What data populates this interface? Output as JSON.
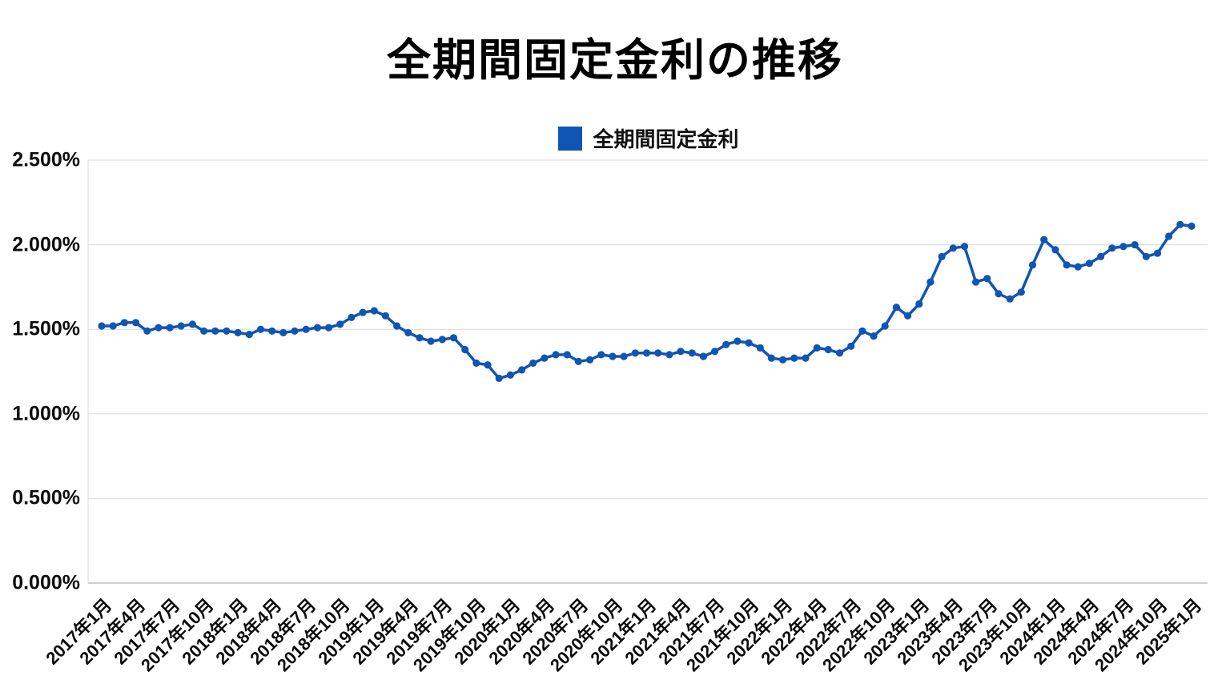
{
  "title": "全期間固定金利の推移",
  "legend": {
    "label": "全期間固定金利",
    "color": "#1155b4"
  },
  "chart_data": {
    "type": "line",
    "title": "全期間固定金利の推移",
    "xlabel": "",
    "ylabel": "",
    "ylim": [
      0,
      2.5
    ],
    "grid": "horizontal",
    "legend_position": "top-center",
    "y_tick_labels": [
      "0.000%",
      "0.500%",
      "1.000%",
      "1.500%",
      "2.000%",
      "2.500%"
    ],
    "y_tick_values": [
      0,
      0.5,
      1.0,
      1.5,
      2.0,
      2.5
    ],
    "x_tick_labels": [
      "2017年1月",
      "2017年4月",
      "2017年7月",
      "2017年10月",
      "2018年1月",
      "2018年4月",
      "2018年7月",
      "2018年10月",
      "2019年1月",
      "2019年4月",
      "2019年7月",
      "2019年10月",
      "2020年1月",
      "2020年4月",
      "2020年7月",
      "2020年10月",
      "2021年1月",
      "2021年4月",
      "2021年7月",
      "2021年10月",
      "2022年1月",
      "2022年4月",
      "2022年7月",
      "2022年10月",
      "2023年1月",
      "2023年4月",
      "2023年7月",
      "2023年10月",
      "2024年1月",
      "2024年4月",
      "2024年7月",
      "2024年10月",
      "2025年1月"
    ],
    "x_tick_interval": 3,
    "x_range_note": "monthly points from 2017年1月 to 2025年1月",
    "series": [
      {
        "name": "全期間固定金利",
        "color": "#1155b4",
        "unit": "%",
        "values": [
          1.52,
          1.52,
          1.54,
          1.54,
          1.49,
          1.51,
          1.51,
          1.52,
          1.53,
          1.49,
          1.49,
          1.49,
          1.48,
          1.47,
          1.5,
          1.49,
          1.48,
          1.49,
          1.5,
          1.51,
          1.51,
          1.53,
          1.57,
          1.6,
          1.61,
          1.58,
          1.52,
          1.48,
          1.45,
          1.43,
          1.44,
          1.45,
          1.38,
          1.3,
          1.29,
          1.21,
          1.23,
          1.26,
          1.3,
          1.33,
          1.35,
          1.35,
          1.31,
          1.32,
          1.35,
          1.34,
          1.34,
          1.36,
          1.36,
          1.36,
          1.35,
          1.37,
          1.36,
          1.34,
          1.37,
          1.41,
          1.43,
          1.42,
          1.39,
          1.33,
          1.32,
          1.33,
          1.33,
          1.39,
          1.38,
          1.36,
          1.4,
          1.49,
          1.46,
          1.52,
          1.63,
          1.58,
          1.65,
          1.78,
          1.93,
          1.98,
          1.99,
          1.78,
          1.8,
          1.71,
          1.68,
          1.72,
          1.88,
          2.03,
          1.97,
          1.88,
          1.87,
          1.89,
          1.93,
          1.98,
          1.99,
          2.0,
          1.93,
          1.95,
          2.05,
          2.12,
          2.11
        ]
      }
    ]
  },
  "colors": {
    "gridline": "#d9d9d9",
    "axis": "#bfbfbf",
    "text": "#0d0d0d",
    "background": "#ffffff"
  }
}
